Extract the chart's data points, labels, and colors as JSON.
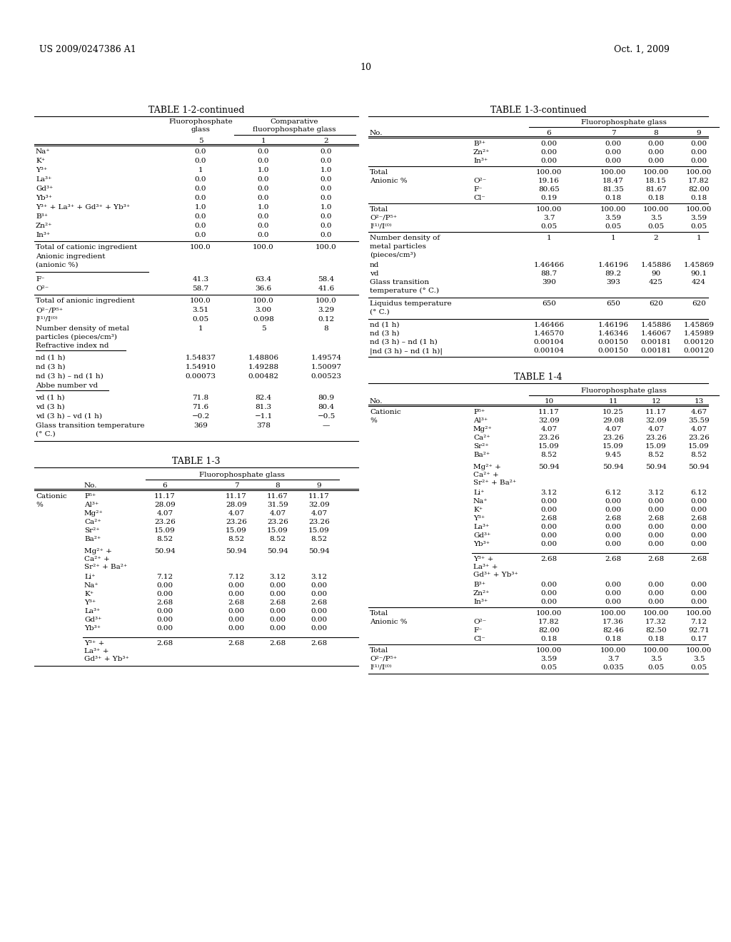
{
  "page_header_left": "US 2009/0247386 A1",
  "page_header_right": "Oct. 1, 2009",
  "page_number": "10",
  "background_color": "#ffffff"
}
